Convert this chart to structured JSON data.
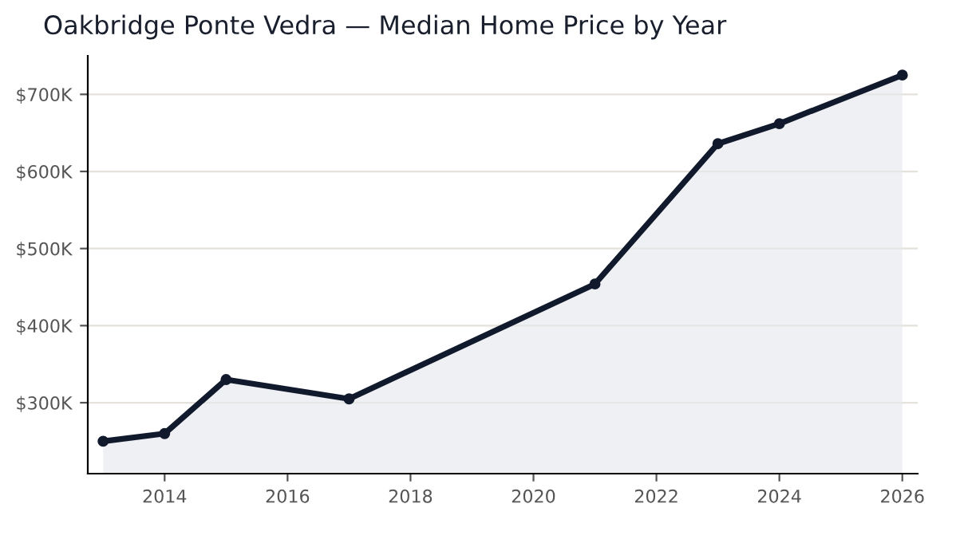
{
  "chart_data": {
    "type": "area",
    "title": "Oakbridge Ponte Vedra — Median Home Price by Year",
    "x": [
      2013,
      2014,
      2015,
      2017,
      2021,
      2023,
      2024,
      2026
    ],
    "series": [
      {
        "color": "#111a2c",
        "values": [
          250000,
          260000,
          330000,
          305000,
          454000,
          636000,
          662000,
          725000
        ]
      }
    ],
    "xlim": [
      2012.75,
      2026.25
    ],
    "xticks": [
      2014,
      2016,
      2018,
      2020,
      2022,
      2024,
      2026
    ],
    "ylim": [
      208000,
      750000
    ],
    "yticks": [
      {
        "value": 300000,
        "label": "$300K"
      },
      {
        "value": 400000,
        "label": "$400K"
      },
      {
        "value": 500000,
        "label": "$500K"
      },
      {
        "value": 600000,
        "label": "$600K"
      },
      {
        "value": 700000,
        "label": "$700K"
      }
    ],
    "grid": "y",
    "marker": "circle"
  }
}
